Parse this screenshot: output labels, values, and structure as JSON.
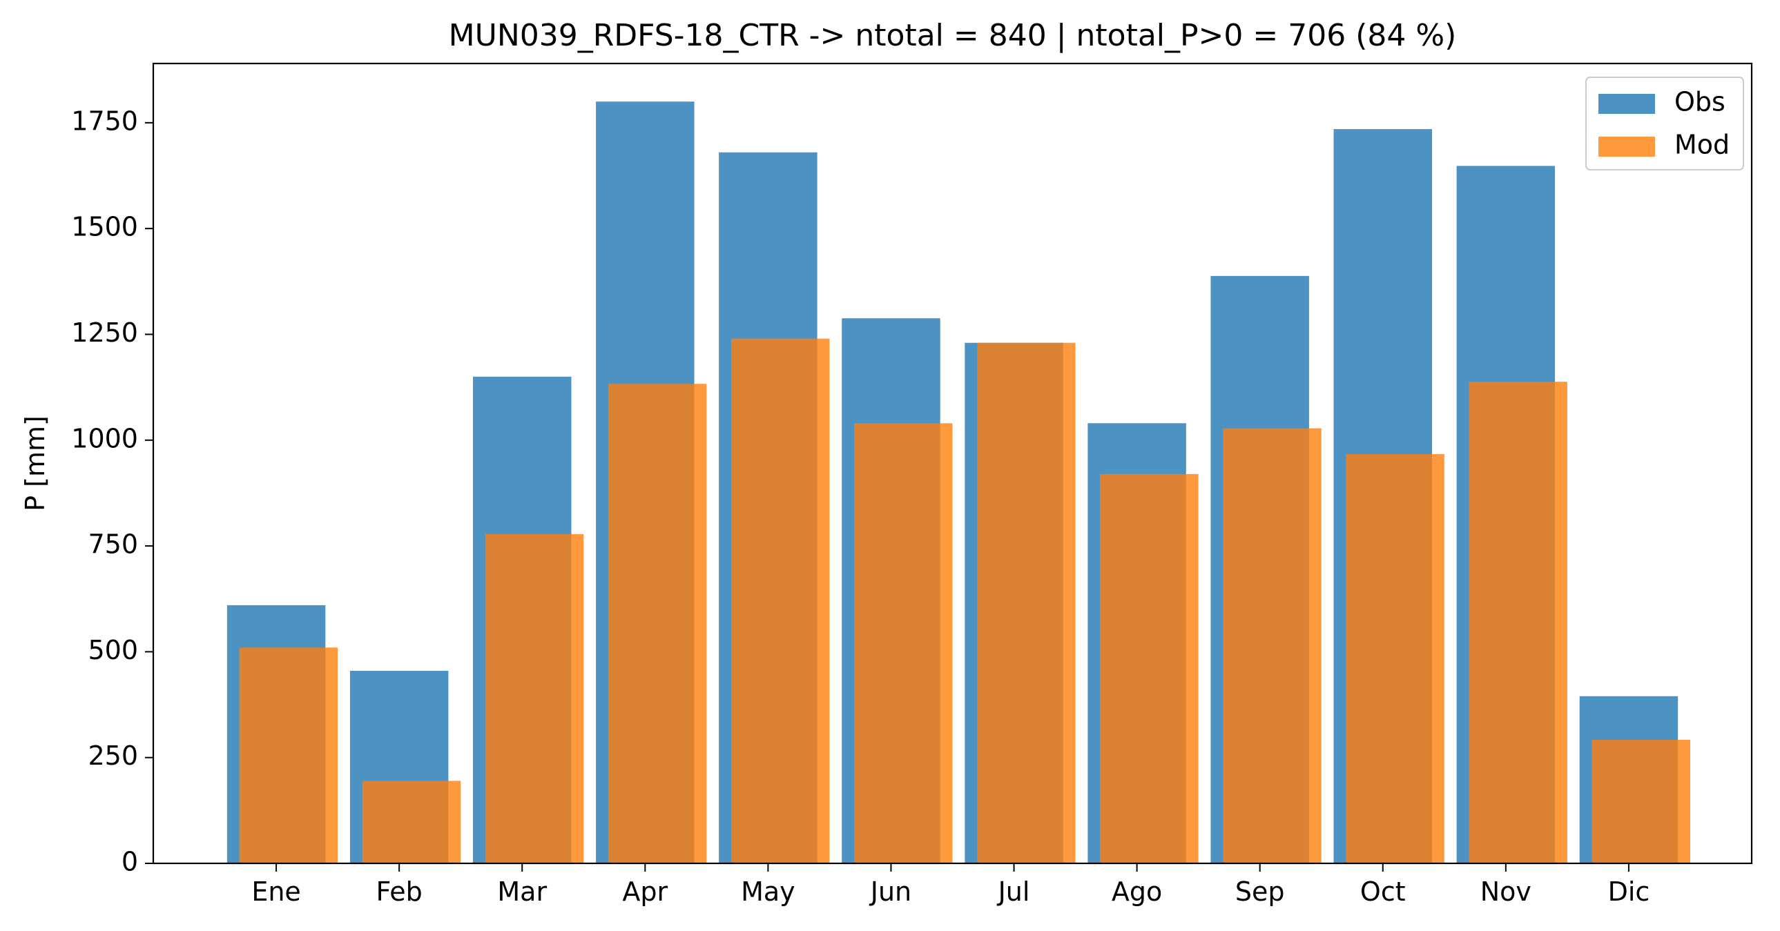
{
  "chart_data": {
    "type": "bar",
    "title": "MUN039_RDFS-18_CTR -> ntotal = 840 | ntotal_P>0 = 706 (84 %)",
    "xlabel": "",
    "ylabel": "P [mm]",
    "categories": [
      "Ene",
      "Feb",
      "Mar",
      "Apr",
      "May",
      "Jun",
      "Jul",
      "Ago",
      "Sep",
      "Oct",
      "Nov",
      "Dic"
    ],
    "ylim": [
      0,
      1890
    ],
    "yticks": [
      0,
      250,
      500,
      750,
      1000,
      1250,
      1500,
      1750
    ],
    "series": [
      {
        "name": "Obs",
        "color": "#1f77b4",
        "values": [
          610,
          455,
          1150,
          1800,
          1680,
          1288,
          1230,
          1040,
          1388,
          1735,
          1648,
          395
        ]
      },
      {
        "name": "Mod",
        "color": "#ff7f0e",
        "values": [
          510,
          195,
          778,
          1133,
          1240,
          1040,
          1230,
          920,
          1028,
          967,
          1138,
          292
        ]
      }
    ],
    "legend_position": "top-right",
    "grid": false
  }
}
